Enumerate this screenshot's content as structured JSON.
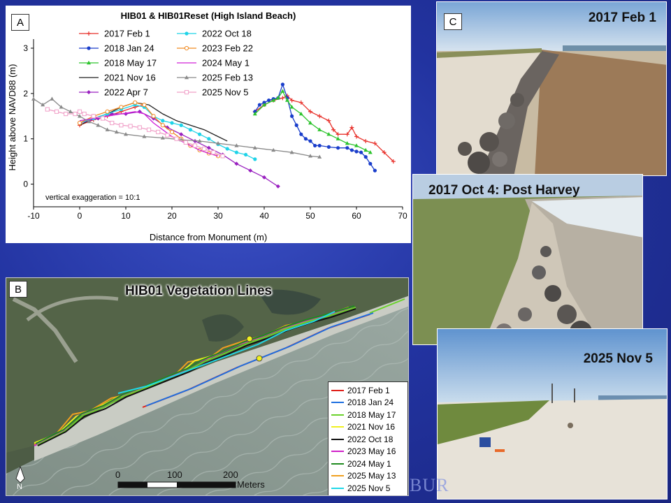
{
  "panel_a": {
    "letter": "A",
    "chart_data": {
      "type": "line",
      "title": "HIB01 & HIB01Reset (High Island Beach)",
      "xlabel": "Distance from Monument (m)",
      "ylabel": "Height above NAVD88 (m)",
      "xlim": [
        -10,
        70
      ],
      "ylim": [
        -0.5,
        3.2
      ],
      "xticks": [
        "-10",
        "0",
        "10",
        "20",
        "30",
        "40",
        "50",
        "60",
        "70"
      ],
      "yticks": [
        "0",
        "1",
        "2",
        "3"
      ],
      "annotation": "vertical exaggeration = 10:1",
      "grid": false,
      "legend_position": "top",
      "series": [
        {
          "name": "2017 Feb 1",
          "color": "#e8302a",
          "marker": "plus",
          "segments": [
            [
              [
                0,
                1.3
              ],
              [
                3,
                1.42
              ],
              [
                6,
                1.5
              ],
              [
                9,
                1.6
              ],
              [
                12,
                1.7
              ],
              [
                14,
                1.75
              ]
            ],
            [
              [
                38,
                1.6
              ],
              [
                40,
                1.75
              ],
              [
                42,
                1.85
              ],
              [
                44,
                1.9
              ],
              [
                45,
                1.95
              ],
              [
                46,
                1.85
              ],
              [
                48,
                1.8
              ],
              [
                50,
                1.6
              ],
              [
                52,
                1.5
              ],
              [
                54,
                1.4
              ],
              [
                55,
                1.2
              ],
              [
                56,
                1.1
              ],
              [
                58,
                1.1
              ],
              [
                59,
                1.25
              ],
              [
                60,
                1.05
              ],
              [
                62,
                0.95
              ],
              [
                64,
                0.9
              ],
              [
                66,
                0.7
              ],
              [
                68,
                0.5
              ]
            ]
          ]
        },
        {
          "name": "2018 Jan 24",
          "color": "#1a3ecb",
          "marker": "circle",
          "segments": [
            [
              [
                38,
                1.6
              ],
              [
                39,
                1.75
              ],
              [
                40,
                1.8
              ],
              [
                41,
                1.85
              ],
              [
                42,
                1.88
              ],
              [
                43,
                1.9
              ],
              [
                44,
                2.2
              ],
              [
                45,
                1.9
              ],
              [
                46,
                1.5
              ],
              [
                47,
                1.3
              ],
              [
                48,
                1.1
              ],
              [
                49,
                1.0
              ],
              [
                50,
                0.95
              ],
              [
                51,
                0.85
              ],
              [
                52,
                0.85
              ],
              [
                54,
                0.82
              ],
              [
                56,
                0.8
              ],
              [
                58,
                0.8
              ],
              [
                59,
                0.75
              ],
              [
                60,
                0.72
              ],
              [
                61,
                0.7
              ],
              [
                62,
                0.6
              ],
              [
                63,
                0.45
              ],
              [
                64,
                0.3
              ]
            ]
          ]
        },
        {
          "name": "2018 May 17",
          "color": "#2ec42e",
          "marker": "triangle",
          "segments": [
            [
              [
                38,
                1.55
              ],
              [
                40,
                1.75
              ],
              [
                42,
                1.85
              ],
              [
                43,
                1.9
              ],
              [
                44,
                2.05
              ],
              [
                45,
                1.85
              ],
              [
                46,
                1.7
              ],
              [
                48,
                1.55
              ],
              [
                50,
                1.35
              ],
              [
                52,
                1.2
              ],
              [
                54,
                1.1
              ],
              [
                56,
                1.0
              ],
              [
                58,
                0.9
              ],
              [
                60,
                0.85
              ],
              [
                62,
                0.75
              ],
              [
                63,
                0.7
              ]
            ]
          ]
        },
        {
          "name": "2021 Nov 16",
          "color": "#222222",
          "marker": "none",
          "segments": [
            [
              [
                0,
                1.3
              ],
              [
                3,
                1.45
              ],
              [
                6,
                1.55
              ],
              [
                9,
                1.7
              ],
              [
                12,
                1.8
              ],
              [
                15,
                1.75
              ],
              [
                18,
                1.55
              ],
              [
                21,
                1.4
              ],
              [
                24,
                1.3
              ],
              [
                27,
                1.2
              ],
              [
                30,
                1.05
              ],
              [
                32,
                0.95
              ]
            ]
          ]
        },
        {
          "name": "2022 Apr 7",
          "color": "#9a22c0",
          "marker": "diamond",
          "segments": [
            [
              [
                0,
                1.35
              ],
              [
                2,
                1.4
              ],
              [
                4,
                1.45
              ],
              [
                7,
                1.55
              ],
              [
                10,
                1.55
              ],
              [
                13,
                1.6
              ],
              [
                16,
                1.45
              ],
              [
                19,
                1.25
              ],
              [
                22,
                1.1
              ],
              [
                25,
                0.95
              ],
              [
                28,
                0.8
              ],
              [
                31,
                0.65
              ],
              [
                34,
                0.45
              ],
              [
                37,
                0.3
              ],
              [
                40,
                0.15
              ],
              [
                43,
                -0.05
              ]
            ]
          ]
        },
        {
          "name": "2022 Oct 18",
          "color": "#1fd3e8",
          "marker": "circle",
          "segments": [
            [
              [
                0,
                1.35
              ],
              [
                3,
                1.45
              ],
              [
                6,
                1.55
              ],
              [
                9,
                1.65
              ],
              [
                12,
                1.75
              ],
              [
                14,
                1.7
              ],
              [
                16,
                1.5
              ],
              [
                18,
                1.4
              ],
              [
                20,
                1.35
              ],
              [
                22,
                1.3
              ],
              [
                24,
                1.2
              ],
              [
                26,
                1.1
              ],
              [
                28,
                1.0
              ],
              [
                30,
                0.88
              ],
              [
                32,
                0.78
              ],
              [
                34,
                0.7
              ],
              [
                36,
                0.65
              ],
              [
                38,
                0.55
              ]
            ]
          ]
        },
        {
          "name": "2023 Feb 22",
          "color": "#f08a22",
          "marker": "circle-open",
          "segments": [
            [
              [
                0,
                1.35
              ],
              [
                3,
                1.5
              ],
              [
                6,
                1.6
              ],
              [
                9,
                1.7
              ],
              [
                12,
                1.8
              ],
              [
                14,
                1.75
              ],
              [
                16,
                1.5
              ],
              [
                18,
                1.3
              ],
              [
                20,
                1.15
              ],
              [
                22,
                1.0
              ],
              [
                24,
                0.85
              ],
              [
                26,
                0.75
              ],
              [
                28,
                0.68
              ],
              [
                30,
                0.62
              ]
            ]
          ]
        },
        {
          "name": "2024 May 1",
          "color": "#d020d8",
          "marker": "none",
          "segments": [
            [
              [
                0,
                1.4
              ],
              [
                3,
                1.45
              ],
              [
                6,
                1.5
              ],
              [
                9,
                1.55
              ],
              [
                12,
                1.6
              ],
              [
                14,
                1.55
              ],
              [
                16,
                1.35
              ],
              [
                18,
                1.2
              ],
              [
                20,
                1.05
              ],
              [
                22,
                0.95
              ],
              [
                24,
                0.85
              ],
              [
                26,
                0.75
              ],
              [
                28,
                0.68
              ],
              [
                30,
                0.62
              ]
            ]
          ]
        },
        {
          "name": "2025 Feb 13",
          "color": "#8a8a8a",
          "marker": "triangle",
          "segments": [
            [
              [
                -10,
                1.88
              ],
              [
                -8,
                1.75
              ],
              [
                -6,
                1.88
              ],
              [
                -4,
                1.7
              ],
              [
                -2,
                1.6
              ],
              [
                0,
                1.5
              ],
              [
                2,
                1.38
              ],
              [
                4,
                1.3
              ],
              [
                6,
                1.2
              ],
              [
                8,
                1.15
              ],
              [
                10,
                1.1
              ],
              [
                14,
                1.05
              ],
              [
                18,
                1.02
              ],
              [
                22,
                0.98
              ],
              [
                26,
                0.95
              ],
              [
                30,
                0.9
              ],
              [
                34,
                0.85
              ],
              [
                38,
                0.8
              ],
              [
                42,
                0.75
              ],
              [
                46,
                0.7
              ],
              [
                50,
                0.62
              ],
              [
                52,
                0.6
              ]
            ]
          ]
        },
        {
          "name": "2025 Nov 5",
          "color": "#f0a0c8",
          "marker": "square-open",
          "segments": [
            [
              [
                -7,
                1.65
              ],
              [
                -5,
                1.6
              ],
              [
                -3,
                1.55
              ],
              [
                -1,
                1.55
              ],
              [
                0,
                1.6
              ],
              [
                1,
                1.55
              ],
              [
                3,
                1.5
              ],
              [
                5,
                1.45
              ],
              [
                7,
                1.35
              ],
              [
                9,
                1.3
              ],
              [
                11,
                1.28
              ],
              [
                13,
                1.25
              ],
              [
                15,
                1.2
              ],
              [
                17,
                1.15
              ],
              [
                19,
                1.08
              ],
              [
                21,
                1.0
              ],
              [
                23,
                0.92
              ],
              [
                25,
                0.85
              ],
              [
                27,
                0.78
              ],
              [
                29,
                0.7
              ],
              [
                31,
                0.62
              ]
            ]
          ]
        }
      ]
    }
  },
  "panel_b": {
    "letter": "B",
    "title": "HIB01 Vegetation Lines",
    "scale_ticks": [
      "0",
      "100",
      "200"
    ],
    "scale_unit": "Meters",
    "north_label": "N",
    "legend": [
      {
        "label": "2017 Feb 1",
        "color": "#e0201a"
      },
      {
        "label": "2018 Jan 24",
        "color": "#1e6fe0"
      },
      {
        "label": "2018 May 17",
        "color": "#6ad22a"
      },
      {
        "label": "2021 Nov 16",
        "color": "#f0f020"
      },
      {
        "label": "2022 Oct 18",
        "color": "#111111"
      },
      {
        "label": "2023 May 16",
        "color": "#d020c8"
      },
      {
        "label": "2024 May 1",
        "color": "#1f8a1f"
      },
      {
        "label": "2025 May 13",
        "color": "#f0a020"
      },
      {
        "label": "2025 Nov 5",
        "color": "#20d8e8"
      }
    ]
  },
  "panel_c": {
    "letter": "C",
    "photos": [
      {
        "title": "2017 Feb 1"
      },
      {
        "title": "2017 Oct 4: Post Harvey"
      },
      {
        "title": "2025 Nov 5"
      }
    ]
  },
  "watermark": "BUR"
}
